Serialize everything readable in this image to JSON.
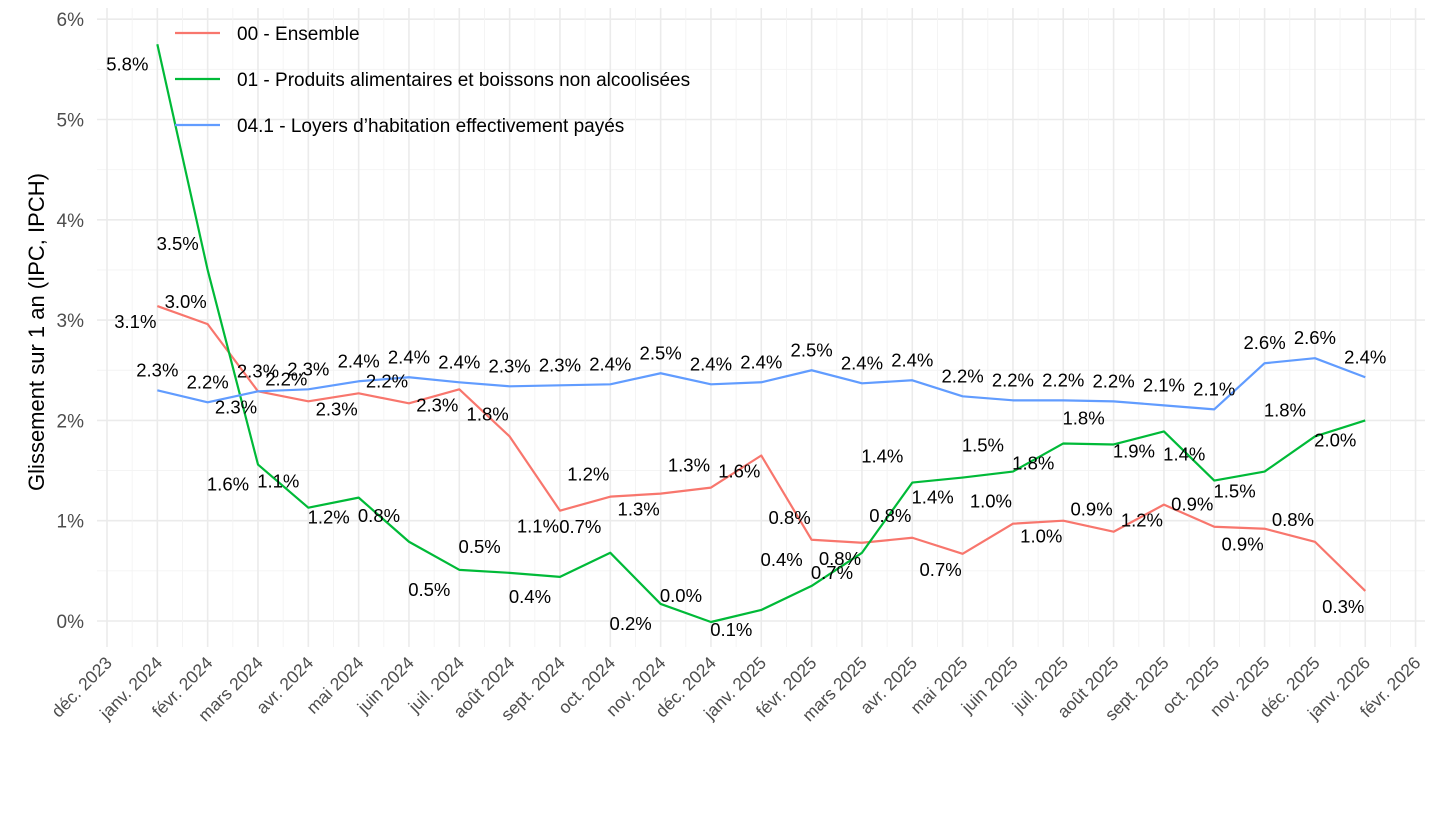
{
  "chart_data": {
    "type": "line",
    "title": "",
    "xlabel": "",
    "ylabel": "Glissement sur 1 an (IPC, IPCH)",
    "ylim": [
      -0.25,
      6.0
    ],
    "yticks": [
      "0%",
      "1%",
      "2%",
      "3%",
      "4%",
      "5%",
      "6%"
    ],
    "grid": true,
    "legend_position": "top-left",
    "x_ticks": [
      "déc. 2023",
      "janv. 2024",
      "févr. 2024",
      "mars 2024",
      "avr. 2024",
      "mai 2024",
      "juin 2024",
      "juil. 2024",
      "août 2024",
      "sept. 2024",
      "oct. 2024",
      "nov. 2024",
      "déc. 2024",
      "janv. 2025",
      "févr. 2025",
      "mars 2025",
      "avr. 2025",
      "mai 2025",
      "juin 2025",
      "juil. 2025",
      "août 2025",
      "sept. 2025",
      "oct. 2025",
      "nov. 2025",
      "déc. 2025",
      "janv. 2026",
      "févr. 2026"
    ],
    "x": [
      "janv. 2024",
      "févr. 2024",
      "mars 2024",
      "avr. 2024",
      "mai 2024",
      "juin 2024",
      "juil. 2024",
      "août 2024",
      "sept. 2024",
      "oct. 2024",
      "nov. 2024",
      "déc. 2024",
      "janv. 2025",
      "févr. 2025",
      "mars 2025",
      "avr. 2025",
      "mai 2025",
      "juin 2025",
      "juil. 2025",
      "août 2025",
      "sept. 2025",
      "oct. 2025",
      "nov. 2025",
      "déc. 2025",
      "janv. 2026"
    ],
    "series": [
      {
        "name": "00 - Ensemble",
        "color": "#F8766D",
        "values": [
          3.14,
          2.96,
          2.29,
          2.19,
          2.27,
          2.17,
          2.31,
          1.84,
          1.1,
          1.24,
          1.27,
          1.33,
          1.65,
          0.81,
          0.78,
          0.83,
          0.67,
          0.97,
          1.0,
          0.89,
          1.16,
          0.94,
          0.92,
          0.79,
          0.3
        ],
        "labels": [
          "3.1%",
          "3.0%",
          "2.3%",
          "2.2%",
          "2.3%",
          "2.2%",
          "2.3%",
          "1.8%",
          "1.1%",
          "1.2%",
          "1.3%",
          "1.3%",
          "1.6%",
          "0.8%",
          "0.8%",
          "0.8%",
          "0.7%",
          "1.0%",
          "1.0%",
          "0.9%",
          "1.2%",
          "0.9%",
          "0.9%",
          "0.8%",
          "0.3%"
        ]
      },
      {
        "name": "01 - Produits alimentaires et boissons non alcoolisées",
        "color": "#00BA38",
        "values": [
          5.75,
          3.5,
          1.56,
          1.13,
          1.23,
          0.79,
          0.51,
          0.48,
          0.44,
          0.68,
          0.17,
          -0.01,
          0.11,
          0.35,
          0.68,
          1.38,
          1.43,
          1.49,
          1.77,
          1.76,
          1.89,
          1.4,
          1.49,
          1.84,
          2.0
        ],
        "labels": [
          "5.8%",
          "3.5%",
          "1.6%",
          "1.1%",
          "1.2%",
          "0.8%",
          "0.5%",
          "0.5%",
          "0.4%",
          "0.7%",
          "0.2%",
          "0.0%",
          "0.1%",
          "0.4%",
          "0.7%",
          "1.4%",
          "1.4%",
          "1.5%",
          "1.8%",
          "1.8%",
          "1.9%",
          "1.4%",
          "1.5%",
          "1.8%",
          "2.0%"
        ]
      },
      {
        "name": "04.1 - Loyers d’habitation effectivement payés",
        "color": "#619CFF",
        "values": [
          2.3,
          2.18,
          2.29,
          2.31,
          2.39,
          2.43,
          2.38,
          2.34,
          2.35,
          2.36,
          2.47,
          2.36,
          2.38,
          2.5,
          2.37,
          2.4,
          2.24,
          2.2,
          2.2,
          2.19,
          2.15,
          2.11,
          2.57,
          2.62,
          2.43
        ],
        "labels": [
          "2.3%",
          "2.2%",
          "2.3%",
          "2.3%",
          "2.4%",
          "2.4%",
          "2.4%",
          "2.3%",
          "2.3%",
          "2.4%",
          "2.5%",
          "2.4%",
          "2.4%",
          "2.5%",
          "2.4%",
          "2.4%",
          "2.2%",
          "2.2%",
          "2.2%",
          "2.2%",
          "2.1%",
          "2.1%",
          "2.6%",
          "2.6%",
          "2.4%"
        ]
      }
    ]
  }
}
